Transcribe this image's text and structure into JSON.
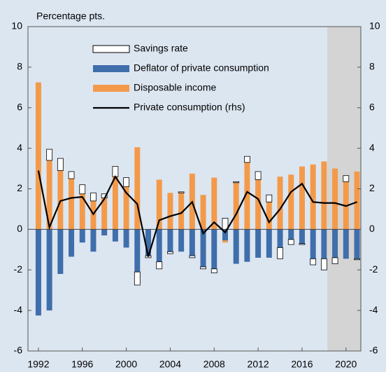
{
  "chart_data": {
    "type": "bar",
    "y_label": "Percentage pts.",
    "x": [
      1992,
      1993,
      1994,
      1995,
      1996,
      1997,
      1998,
      1999,
      2000,
      2001,
      2002,
      2003,
      2004,
      2005,
      2006,
      2007,
      2008,
      2009,
      2010,
      2011,
      2012,
      2013,
      2014,
      2015,
      2016,
      2017,
      2018,
      2019,
      2020,
      2021
    ],
    "xlim": [
      1991.05,
      2021.35
    ],
    "xticks": [
      1992,
      1996,
      2000,
      2004,
      2008,
      2012,
      2016,
      2020
    ],
    "ylim": [
      -6,
      10
    ],
    "yticks": [
      -6,
      -4,
      -2,
      0,
      2,
      4,
      6,
      8,
      10
    ],
    "y2lim": [
      -6,
      10
    ],
    "y2ticks": [
      -6,
      -4,
      -2,
      0,
      2,
      4,
      6,
      8,
      10
    ],
    "shaded_from": 2018.3,
    "series": [
      {
        "name": "Savings rate",
        "type": "bar",
        "color": "#ffffff",
        "values": [
          0,
          0.55,
          0.6,
          0.35,
          0.45,
          0.4,
          0.2,
          0.5,
          0.45,
          -0.65,
          -0.1,
          -0.35,
          -0.1,
          0.05,
          -0.1,
          -0.1,
          -0.2,
          0.55,
          0.05,
          0.3,
          0.4,
          0.35,
          -0.55,
          -0.25,
          -0.05,
          -0.3,
          -0.55,
          -0.3,
          0.3,
          -0.05
        ]
      },
      {
        "name": "Deflator of private consumption",
        "type": "bar",
        "color": "#3f6eab",
        "values": [
          -4.25,
          -4.0,
          -2.2,
          -1.35,
          -0.65,
          -1.1,
          -0.3,
          -0.6,
          -0.9,
          -2.1,
          -1.3,
          -1.6,
          -1.1,
          -1.1,
          -1.3,
          -1.85,
          -1.95,
          -0.55,
          -1.7,
          -1.6,
          -1.4,
          -1.4,
          -0.9,
          -0.5,
          -0.7,
          -1.45,
          -1.45,
          -1.4,
          -1.45,
          -1.45
        ]
      },
      {
        "name": "Disposable income",
        "type": "bar",
        "color": "#f39a4a",
        "values": [
          7.25,
          3.4,
          2.9,
          2.5,
          1.75,
          1.4,
          1.55,
          2.6,
          2.1,
          4.05,
          0,
          2.45,
          1.8,
          1.8,
          2.75,
          1.7,
          2.55,
          -0.1,
          2.3,
          3.3,
          2.45,
          1.35,
          2.6,
          2.7,
          3.1,
          3.2,
          3.35,
          3.0,
          2.35,
          2.85
        ]
      },
      {
        "name": "Private consumption (rhs)",
        "type": "line",
        "axis": "y2",
        "color": "#000000",
        "values": [
          2.9,
          0.1,
          1.4,
          1.55,
          1.6,
          0.75,
          1.5,
          2.6,
          1.8,
          1.25,
          -1.35,
          0.45,
          0.65,
          0.8,
          1.35,
          -0.2,
          0.35,
          -0.15,
          0.75,
          1.85,
          1.5,
          0.35,
          1.0,
          1.85,
          2.25,
          1.35,
          1.3,
          1.3,
          1.15,
          1.35
        ]
      }
    ]
  }
}
